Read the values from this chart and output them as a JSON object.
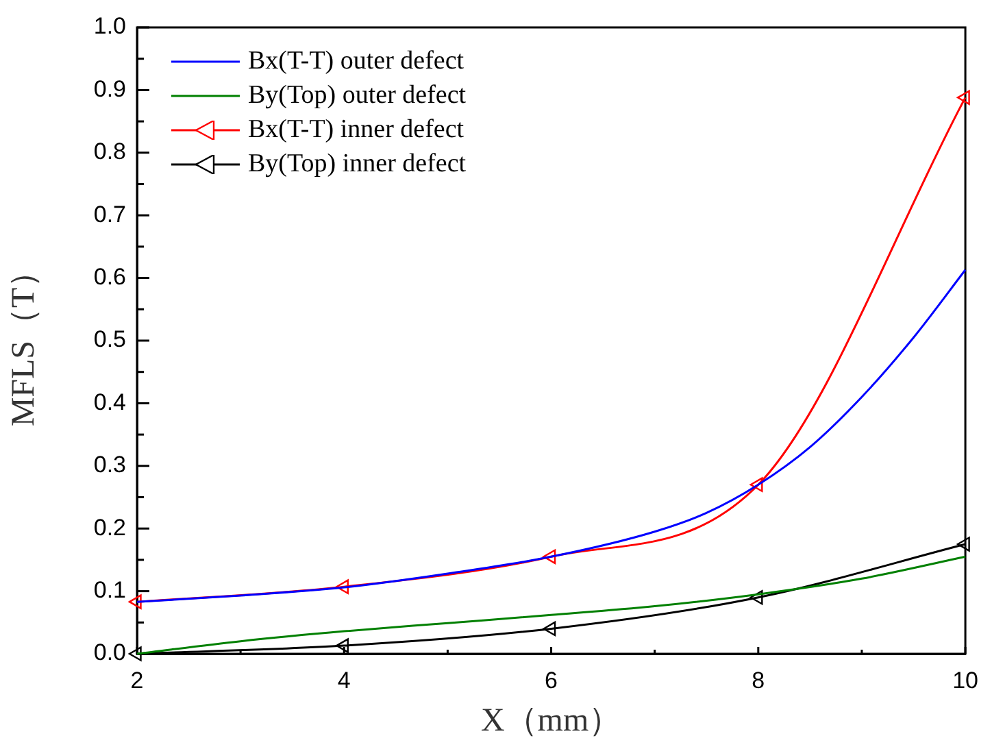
{
  "chart_data": {
    "type": "line",
    "xlabel": "X（mm）",
    "ylabel": "MFLS（T）",
    "xlim": [
      2,
      10
    ],
    "xticks": [
      2,
      {
        "value": 3,
        "label": null
      },
      4,
      {
        "value": 5,
        "label": null
      },
      6,
      {
        "value": 7,
        "label": null
      },
      8,
      {
        "value": 9,
        "label": null
      },
      10
    ],
    "ylim": [
      0,
      1
    ],
    "yticks": [
      {
        "value": 0,
        "label": "0.0"
      },
      {
        "value": 0.05,
        "label": null
      },
      0.1,
      {
        "value": 0.15,
        "label": null
      },
      0.2,
      {
        "value": 0.25,
        "label": null
      },
      0.3,
      {
        "value": 0.35,
        "label": null
      },
      0.4,
      {
        "value": 0.45,
        "label": null
      },
      0.5,
      {
        "value": 0.55,
        "label": null
      },
      0.6,
      {
        "value": 0.65,
        "label": null
      },
      0.7,
      {
        "value": 0.75,
        "label": null
      },
      0.8,
      {
        "value": 0.85,
        "label": null
      },
      0.9,
      {
        "value": 0.95,
        "label": null
      },
      {
        "value": 1,
        "label": "1.0"
      }
    ],
    "grid": false,
    "legend": "top left",
    "line_style": "solid",
    "series": [
      {
        "name": "Bx(T-T) outer defect",
        "color": "#0000ff",
        "marker": "none",
        "x": [
          2,
          3,
          4,
          5,
          6,
          7,
          7.5,
          8,
          8.5,
          9,
          9.5,
          10
        ],
        "values": [
          0.083,
          0.093,
          0.106,
          0.128,
          0.155,
          0.195,
          0.225,
          0.27,
          0.33,
          0.41,
          0.505,
          0.613
        ]
      },
      {
        "name": "By(Top) outer defect",
        "color": "#008000",
        "marker": "none",
        "x": [
          2,
          3,
          4,
          5,
          6,
          7,
          8,
          9,
          10
        ],
        "values": [
          0,
          0.02,
          0.036,
          0.049,
          0.062,
          0.076,
          0.095,
          0.12,
          0.155
        ]
      },
      {
        "name": "Bx(T-T) inner defect",
        "color": "#ff0000",
        "marker": "triangle",
        "x": [
          2,
          4,
          6,
          8,
          10
        ],
        "values": [
          0.083,
          0.107,
          0.155,
          0.27,
          0.888
        ]
      },
      {
        "name": "By(Top) inner defect",
        "color": "#000000",
        "marker": "triangle",
        "x": [
          2,
          4,
          6,
          8,
          10
        ],
        "values": [
          0,
          0.013,
          0.04,
          0.09,
          0.175
        ]
      }
    ]
  }
}
